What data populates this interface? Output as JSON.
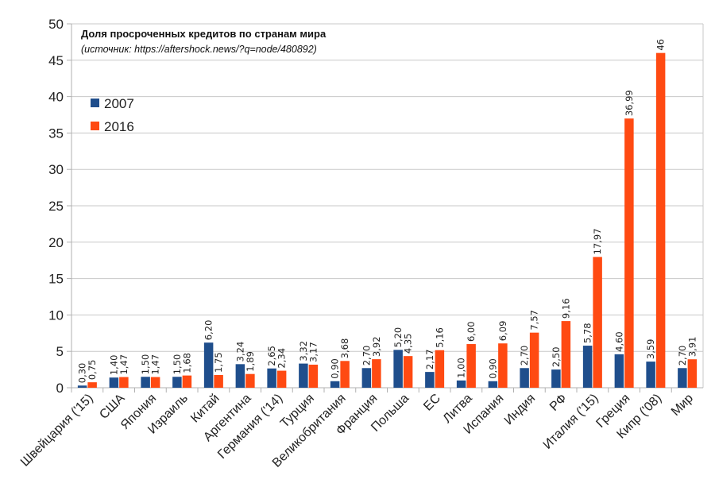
{
  "chart_data": {
    "type": "bar",
    "title": "Доля просроченных кредитов по странам мира",
    "subtitle": "(источник: https://aftershock.news/?q=node/480892)",
    "xlabel": "",
    "ylabel": "",
    "ylim": [
      0,
      50
    ],
    "yticks": [
      0,
      5,
      10,
      15,
      20,
      25,
      30,
      35,
      40,
      45,
      50
    ],
    "grid": true,
    "legend_position": "left",
    "categories": [
      "Швейцария ('15)",
      "США",
      "Япония",
      "Израиль",
      "Китай",
      "Аргентина",
      "Германия ('14)",
      "Турция",
      "Великобритания",
      "Франция",
      "Польша",
      "ЕС",
      "Литва",
      "Испания",
      "Индия",
      "РФ",
      "Италия ('15)",
      "Греция",
      "Кипр ('08)",
      "Мир"
    ],
    "series": [
      {
        "name": "2007",
        "color": "#1f4e8c",
        "values": [
          0.3,
          1.4,
          1.5,
          1.5,
          6.2,
          3.24,
          2.65,
          3.32,
          0.9,
          2.7,
          5.2,
          2.17,
          1.0,
          0.9,
          2.7,
          2.5,
          5.78,
          4.6,
          3.59,
          2.7
        ],
        "labels": [
          "0,30",
          "1,40",
          "1,50",
          "1,50",
          "6,20",
          "3,24",
          "2,65",
          "3,32",
          "0,90",
          "2,70",
          "5,20",
          "2,17",
          "1,00",
          "0,90",
          "2,70",
          "2,50",
          "5,78",
          "4,60",
          "3,59",
          "2,70"
        ]
      },
      {
        "name": "2016",
        "color": "#ff4a12",
        "values": [
          0.75,
          1.47,
          1.47,
          1.68,
          1.75,
          1.89,
          2.34,
          3.17,
          3.68,
          3.92,
          4.35,
          5.16,
          6.0,
          6.09,
          7.57,
          9.16,
          17.97,
          36.99,
          46,
          3.91
        ],
        "labels": [
          "0,75",
          "1,47",
          "1,47",
          "1,68",
          "1,75",
          "1,89",
          "2,34",
          "3,17",
          "3,68",
          "3,92",
          "4,35",
          "5,16",
          "6,00",
          "6,09",
          "7,57",
          "9,16",
          "17,97",
          "36,99",
          "46",
          "3,91"
        ]
      }
    ]
  }
}
